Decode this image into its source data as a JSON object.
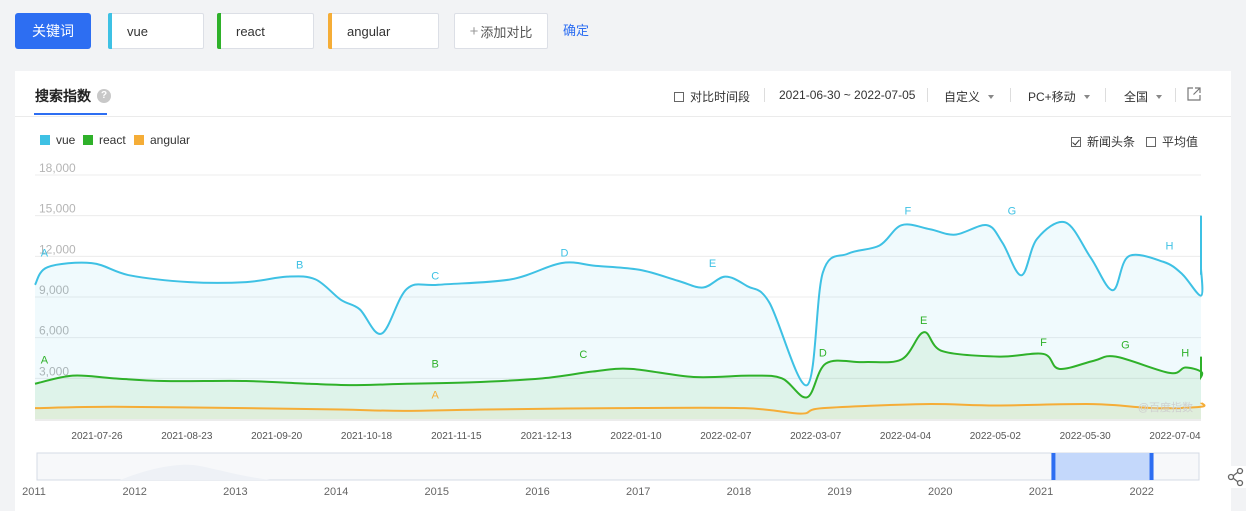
{
  "search_bar": {
    "keyword_button": "关键词",
    "keywords": [
      "vue",
      "react",
      "angular"
    ],
    "add_compare": "添加对比",
    "confirm": "确定"
  },
  "card": {
    "tab_title": "搜索指数",
    "compare_period": "对比时间段",
    "date_range": "2021-06-30 ~ 2022-07-05",
    "custom": "自定义",
    "device": "PC+移动",
    "region": "全国",
    "news_headline": "新闻头条",
    "average": "平均值"
  },
  "colors": {
    "vue": "#3ec1e4",
    "react": "#2fb12a",
    "angular": "#f5ad37",
    "accent": "#2d6ef2"
  },
  "chart_data": {
    "type": "line",
    "ylim": [
      0,
      18000
    ],
    "y_ticks": [
      "18,000",
      "15,000",
      "12,000",
      "9,000",
      "6,000",
      "3,000"
    ],
    "x_labels": [
      "2021-07-26",
      "2021-08-23",
      "2021-09-20",
      "2021-10-18",
      "2021-11-15",
      "2021-12-13",
      "2022-01-10",
      "2022-02-07",
      "2022-03-07",
      "2022-04-04",
      "2022-05-02",
      "2022-05-30",
      "2022-07-04"
    ],
    "date_range": [
      "2021-06-30",
      "2022-07-05"
    ],
    "series": [
      {
        "name": "vue",
        "color": "#3ec1e4",
        "points": [
          [
            "2021-06-30",
            9900
          ],
          [
            "2021-07-04",
            11200
          ],
          [
            "2021-07-18",
            11500
          ],
          [
            "2021-07-30",
            10600
          ],
          [
            "2021-08-18",
            10100
          ],
          [
            "2021-09-05",
            10100
          ],
          [
            "2021-09-18",
            10500
          ],
          [
            "2021-09-27",
            10300
          ],
          [
            "2021-10-05",
            8800
          ],
          [
            "2021-10-11",
            8100
          ],
          [
            "2021-10-18",
            6300
          ],
          [
            "2021-10-26",
            9600
          ],
          [
            "2021-11-05",
            9900
          ],
          [
            "2021-11-28",
            10300
          ],
          [
            "2021-12-14",
            11500
          ],
          [
            "2021-12-25",
            11300
          ],
          [
            "2022-01-08",
            11000
          ],
          [
            "2022-01-20",
            10200
          ],
          [
            "2022-01-28",
            9700
          ],
          [
            "2022-02-04",
            10500
          ],
          [
            "2022-02-11",
            9800
          ],
          [
            "2022-02-18",
            8600
          ],
          [
            "2022-03-02",
            2500
          ],
          [
            "2022-03-07",
            10800
          ],
          [
            "2022-03-15",
            12200
          ],
          [
            "2022-03-25",
            12800
          ],
          [
            "2022-04-01",
            14300
          ],
          [
            "2022-04-10",
            14000
          ],
          [
            "2022-04-18",
            13600
          ],
          [
            "2022-04-28",
            14300
          ],
          [
            "2022-05-03",
            13000
          ],
          [
            "2022-05-09",
            10600
          ],
          [
            "2022-05-14",
            13300
          ],
          [
            "2022-05-23",
            14500
          ],
          [
            "2022-05-31",
            11900
          ],
          [
            "2022-06-07",
            9500
          ],
          [
            "2022-06-12",
            12000
          ],
          [
            "2022-06-23",
            11600
          ],
          [
            "2022-06-29",
            10700
          ],
          [
            "2022-07-07",
            9100
          ],
          [
            "2022-07-13",
            11100
          ],
          [
            "2022-07-21",
            10800
          ],
          [
            "2022-08-01",
            11100
          ],
          [
            "2022-08-05",
            15000
          ]
        ],
        "annotations": [
          [
            "A",
            "2021-07-03",
            12000
          ],
          [
            "B",
            "2021-09-22",
            11100
          ],
          [
            "C",
            "2021-11-04",
            10300
          ],
          [
            "D",
            "2021-12-15",
            12000
          ],
          [
            "E",
            "2022-01-31",
            11200
          ],
          [
            "F",
            "2022-04-03",
            15100
          ],
          [
            "G",
            "2022-05-06",
            15100
          ],
          [
            "H",
            "2022-06-25",
            12500
          ]
        ]
      },
      {
        "name": "react",
        "color": "#2fb12a",
        "points": [
          [
            "2021-06-30",
            2600
          ],
          [
            "2021-07-12",
            3200
          ],
          [
            "2021-07-25",
            3000
          ],
          [
            "2021-08-10",
            2800
          ],
          [
            "2021-09-05",
            2800
          ],
          [
            "2021-09-25",
            2600
          ],
          [
            "2021-10-10",
            2500
          ],
          [
            "2021-10-26",
            2600
          ],
          [
            "2021-11-15",
            2700
          ],
          [
            "2021-12-08",
            3000
          ],
          [
            "2021-12-24",
            3500
          ],
          [
            "2022-01-05",
            3700
          ],
          [
            "2022-01-25",
            3100
          ],
          [
            "2022-02-12",
            3200
          ],
          [
            "2022-02-22",
            3000
          ],
          [
            "2022-03-02",
            1600
          ],
          [
            "2022-03-08",
            4100
          ],
          [
            "2022-03-20",
            4200
          ],
          [
            "2022-04-01",
            4400
          ],
          [
            "2022-04-08",
            6400
          ],
          [
            "2022-04-14",
            5000
          ],
          [
            "2022-05-02",
            4600
          ],
          [
            "2022-05-16",
            4800
          ],
          [
            "2022-05-21",
            3700
          ],
          [
            "2022-06-01",
            4300
          ],
          [
            "2022-06-08",
            4600
          ],
          [
            "2022-06-25",
            3400
          ],
          [
            "2022-06-30",
            3800
          ],
          [
            "2022-07-12",
            3500
          ],
          [
            "2022-07-20",
            3100
          ],
          [
            "2022-07-27",
            3500
          ],
          [
            "2022-08-02",
            3500
          ],
          [
            "2022-08-05",
            4600
          ]
        ],
        "annotations": [
          [
            "A",
            "2021-07-03",
            4100
          ],
          [
            "B",
            "2021-11-04",
            3800
          ],
          [
            "C",
            "2021-12-21",
            4500
          ],
          [
            "D",
            "2022-03-07",
            4600
          ],
          [
            "E",
            "2022-04-08",
            7000
          ],
          [
            "F",
            "2022-05-16",
            5400
          ],
          [
            "G",
            "2022-06-11",
            5200
          ],
          [
            "H",
            "2022-06-30",
            4600
          ]
        ]
      },
      {
        "name": "angular",
        "color": "#f5ad37",
        "points": [
          [
            "2021-06-30",
            800
          ],
          [
            "2021-07-25",
            900
          ],
          [
            "2021-09-05",
            800
          ],
          [
            "2021-10-05",
            700
          ],
          [
            "2021-10-25",
            600
          ],
          [
            "2021-11-20",
            700
          ],
          [
            "2022-01-01",
            800
          ],
          [
            "2022-02-10",
            800
          ],
          [
            "2022-02-28",
            400
          ],
          [
            "2022-03-07",
            800
          ],
          [
            "2022-04-08",
            1100
          ],
          [
            "2022-05-01",
            1000
          ],
          [
            "2022-06-01",
            1100
          ],
          [
            "2022-06-20",
            800
          ],
          [
            "2022-07-10",
            900
          ],
          [
            "2022-08-05",
            1200
          ]
        ],
        "annotations": [
          [
            "A",
            "2021-11-04",
            1500
          ]
        ]
      }
    ],
    "watermark": "@百度指数",
    "timeline": {
      "years": [
        "2011",
        "2012",
        "2013",
        "2014",
        "2015",
        "2016",
        "2017",
        "2018",
        "2019",
        "2020",
        "2021",
        "2022"
      ],
      "selection": [
        "2021-06-30",
        "2022-07-05"
      ]
    }
  }
}
